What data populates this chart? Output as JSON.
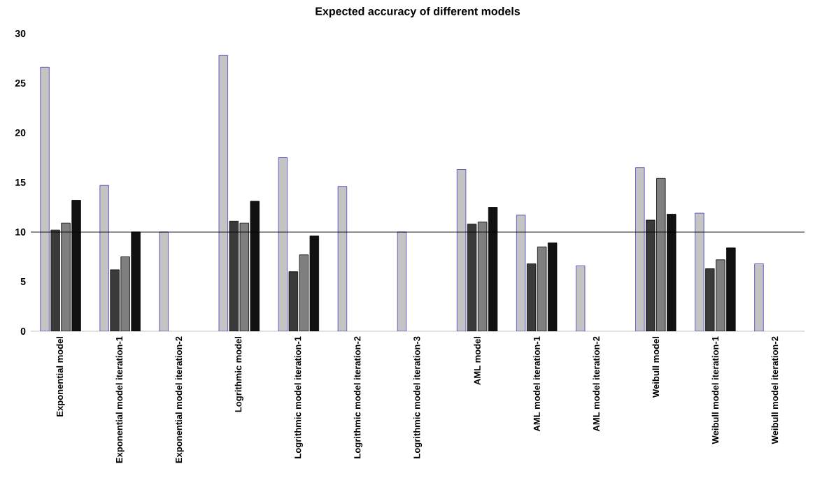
{
  "chart_data": {
    "type": "bar",
    "title": "Expected accuracy of different models",
    "categories": [
      "Exponential model",
      "Exponential model iteration-1",
      "Exponential model iteration-2",
      "Logrithmic model",
      "Logrithmic model iteration-1",
      "Logrithmic model iteration-2",
      "Logrithmic model iteration-3",
      "AML model",
      "AML model iteration-1",
      "AML model iteration-2",
      "Weibull model",
      "Weibull model iteration-1",
      "Weibull model iteration-2"
    ],
    "series": [
      {
        "color": "#c4c4c4",
        "values": [
          26.6,
          14.7,
          10.0,
          27.8,
          17.5,
          14.6,
          10.0,
          16.3,
          11.7,
          6.6,
          16.5,
          11.9,
          6.8
        ]
      },
      {
        "color": "#3a3a3a",
        "values": [
          10.2,
          6.2,
          null,
          11.1,
          6.0,
          null,
          null,
          10.8,
          6.8,
          null,
          11.2,
          6.3,
          null
        ]
      },
      {
        "color": "#7f7f7f",
        "values": [
          10.9,
          7.5,
          null,
          10.9,
          7.7,
          null,
          null,
          11.0,
          8.5,
          null,
          15.4,
          7.2,
          null
        ]
      },
      {
        "color": "#111111",
        "values": [
          13.2,
          10.0,
          null,
          13.1,
          9.6,
          null,
          null,
          12.5,
          8.9,
          null,
          11.8,
          8.4,
          null
        ]
      }
    ],
    "ylim": [
      0,
      30
    ],
    "yticks": [
      0,
      5,
      10,
      15,
      20,
      25,
      30
    ],
    "ref_lines": [
      {
        "axis": "y",
        "value": 10,
        "color": "#000000"
      }
    ]
  }
}
